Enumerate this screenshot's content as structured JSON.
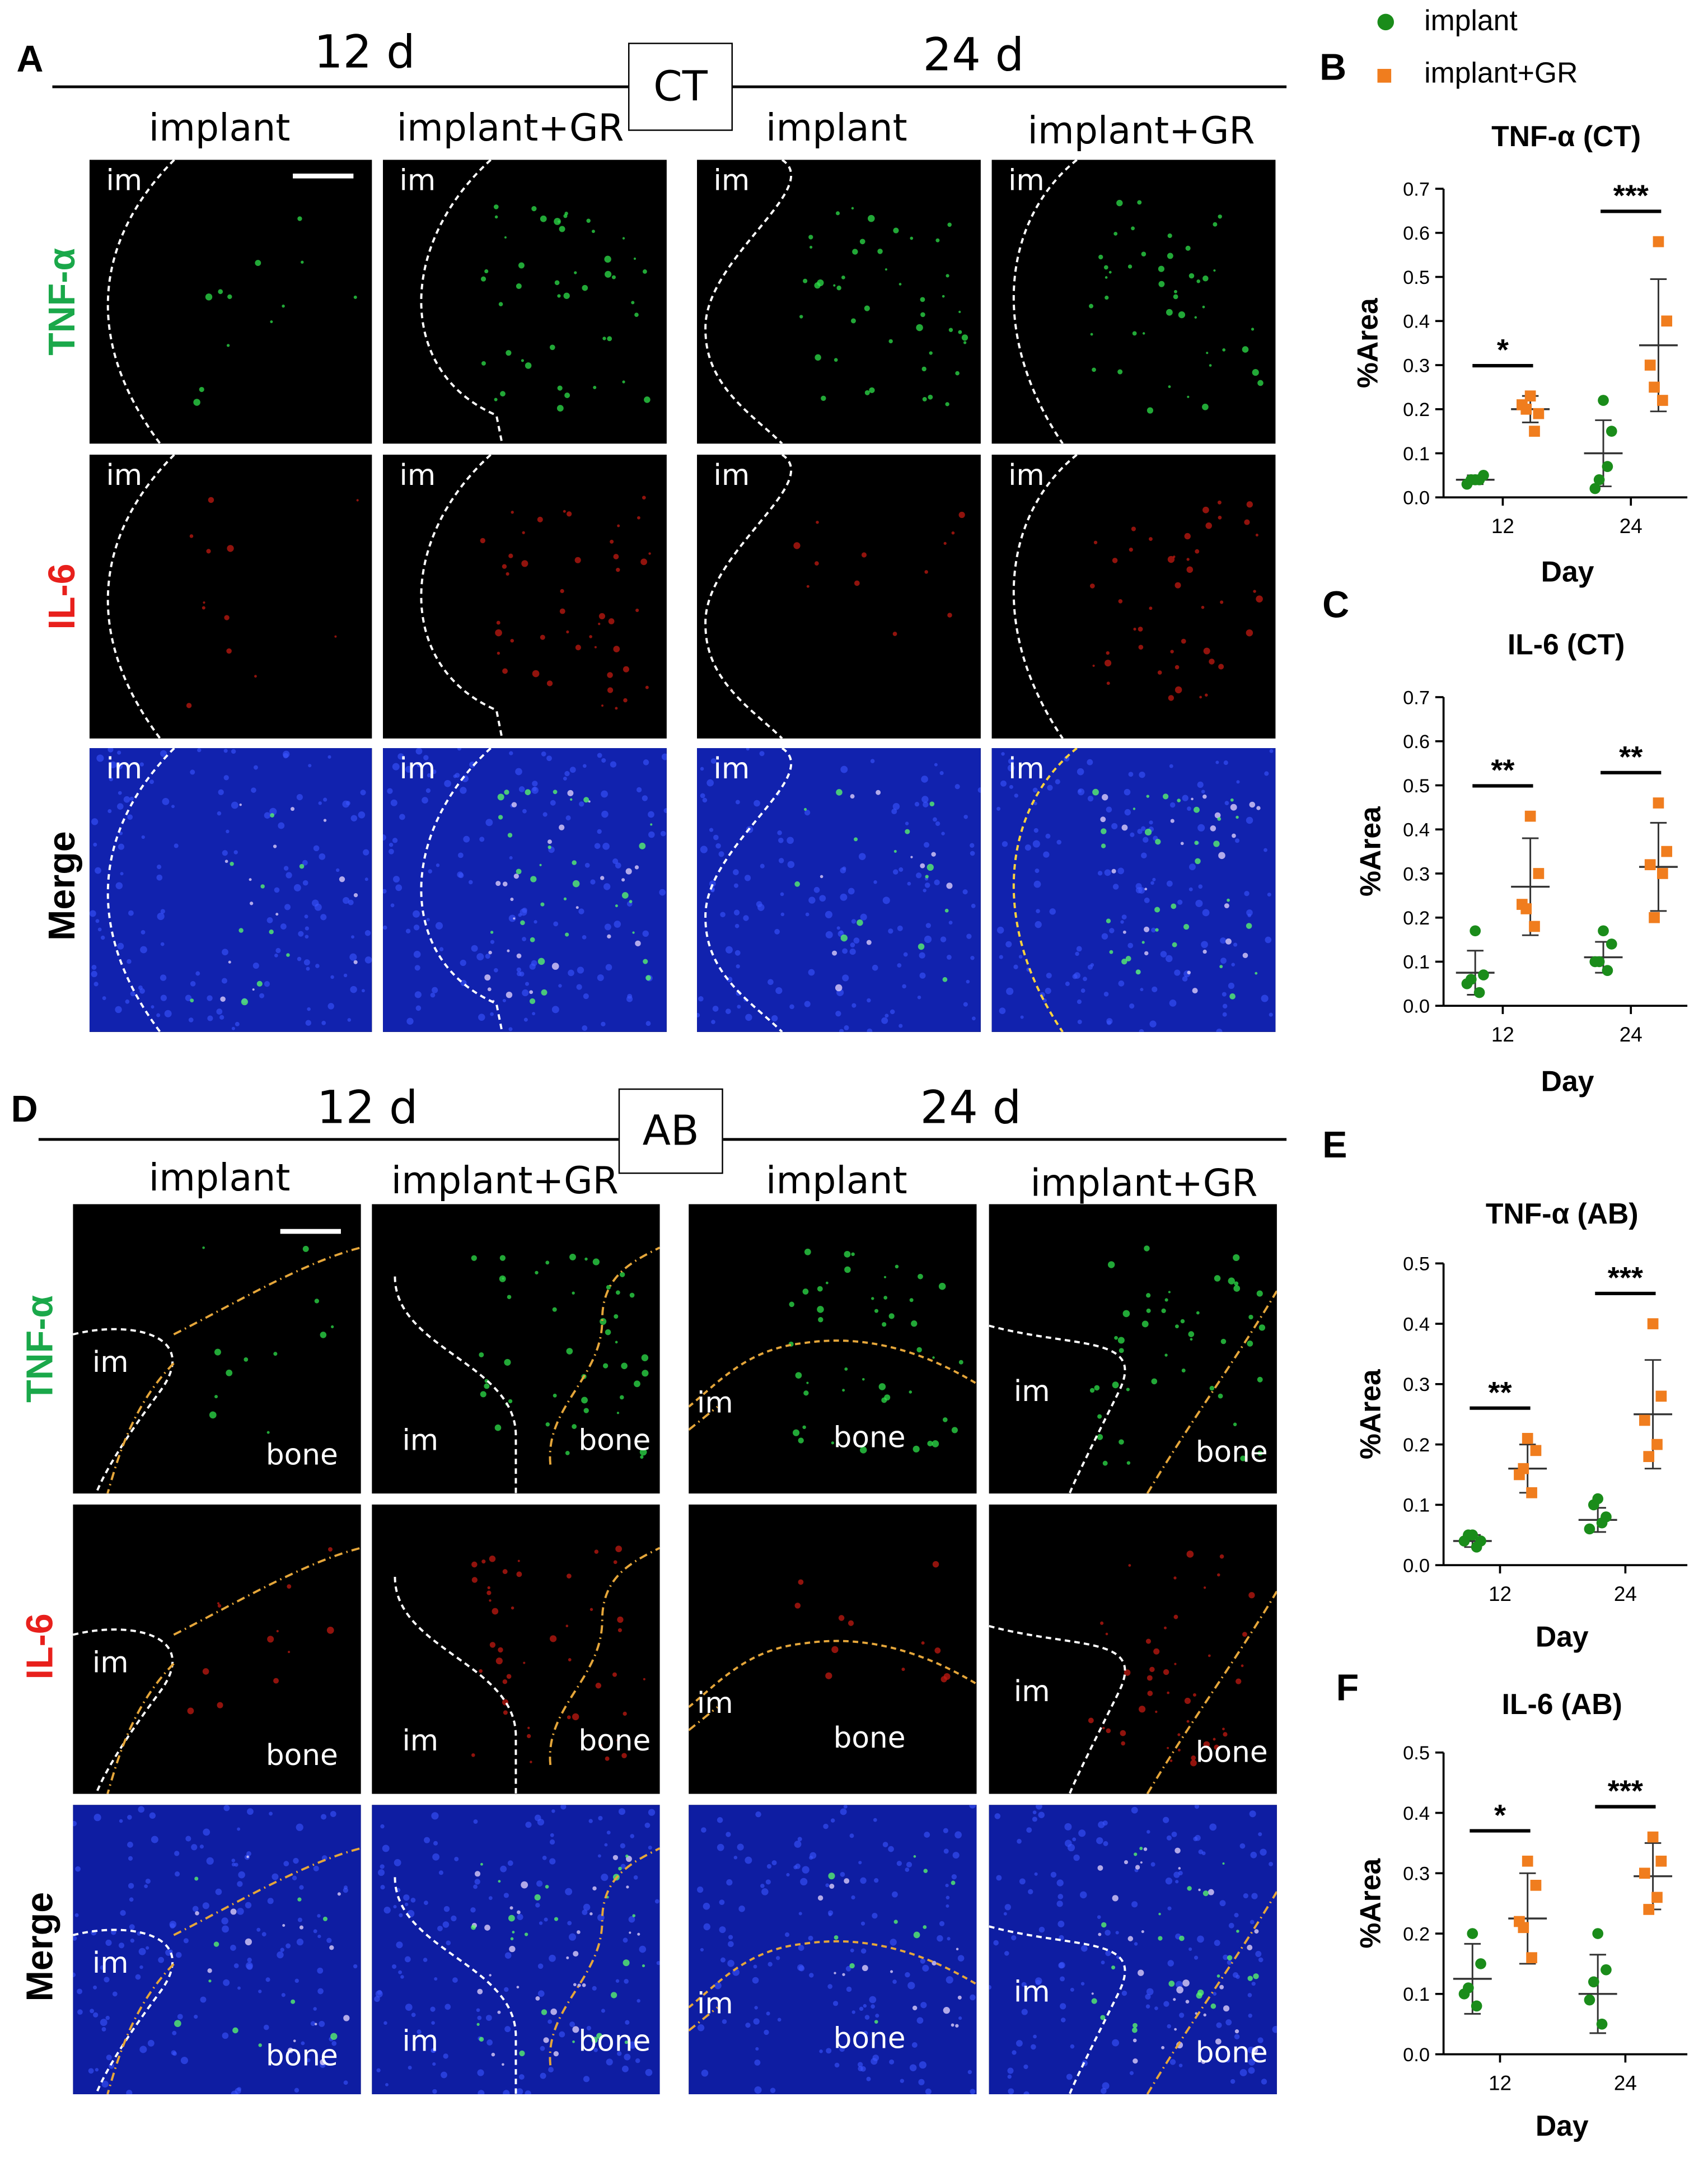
{
  "panel_labels": {
    "A": "A",
    "B": "B",
    "C": "C",
    "D": "D",
    "E": "E",
    "F": "F"
  },
  "section_top": {
    "tag": "CT",
    "day_left": "12 d",
    "day_right": "24 d",
    "columns": [
      "implant",
      "implant+GR",
      "implant",
      "implant+GR"
    ],
    "rows": [
      "TNF-α",
      "IL-6",
      "Merge"
    ],
    "row_colors": [
      "#1aa84a",
      "#e8201c",
      "#000000"
    ],
    "tiles": [
      [
        "im",
        "im",
        "im",
        "im"
      ],
      [
        "im",
        "im",
        "im",
        "im"
      ],
      [
        "im",
        "im",
        "im",
        "im"
      ]
    ]
  },
  "section_bottom": {
    "tag": "AB",
    "day_left": "12 d",
    "day_right": "24 d",
    "columns": [
      "implant",
      "implant+GR",
      "implant",
      "implant+GR"
    ],
    "rows": [
      "TNF-α",
      "IL-6",
      "Merge"
    ],
    "row_colors": [
      "#1aa84a",
      "#e8201c",
      "#000000"
    ],
    "tile_labels": {
      "im": "im",
      "bone": "bone"
    }
  },
  "legend": [
    {
      "label": "implant",
      "color": "#1a8c1a",
      "marker": "circle"
    },
    {
      "label": "implant+GR",
      "color": "#f07d1e",
      "marker": "square"
    }
  ],
  "chart_data": [
    {
      "id": "B",
      "type": "scatter",
      "title": "TNF-α (CT)",
      "xlabel": "Day",
      "ylabel": "%Area",
      "categories": [
        "12",
        "24"
      ],
      "ylim": [
        0,
        0.7
      ],
      "yticks": [
        "0.0",
        "0.1",
        "0.2",
        "0.3",
        "0.4",
        "0.5",
        "0.6",
        "0.7"
      ],
      "series": [
        {
          "name": "implant",
          "values": [
            [
              0.04,
              0.05,
              0.03,
              0.04,
              0.04
            ],
            [
              0.22,
              0.15,
              0.02,
              0.07,
              0.04
            ]
          ],
          "mean": [
            0.04,
            0.1
          ],
          "sd": [
            0.01,
            0.075
          ]
        },
        {
          "name": "implant+GR",
          "values": [
            [
              0.23,
              0.19,
              0.21,
              0.15,
              0.2
            ],
            [
              0.58,
              0.4,
              0.3,
              0.22,
              0.25
            ]
          ],
          "mean": [
            0.2,
            0.345
          ],
          "sd": [
            0.03,
            0.15
          ]
        }
      ],
      "significance": [
        {
          "category": "12",
          "text": "*"
        },
        {
          "category": "24",
          "text": "***"
        }
      ]
    },
    {
      "id": "C",
      "type": "scatter",
      "title": "IL-6 (CT)",
      "xlabel": "Day",
      "ylabel": "%Area",
      "categories": [
        "12",
        "24"
      ],
      "ylim": [
        0,
        0.7
      ],
      "yticks": [
        "0.0",
        "0.1",
        "0.2",
        "0.3",
        "0.4",
        "0.5",
        "0.6",
        "0.7"
      ],
      "series": [
        {
          "name": "implant",
          "values": [
            [
              0.17,
              0.07,
              0.05,
              0.03,
              0.06
            ],
            [
              0.17,
              0.14,
              0.1,
              0.08,
              0.1
            ]
          ],
          "mean": [
            0.075,
            0.11
          ],
          "sd": [
            0.05,
            0.035
          ]
        },
        {
          "name": "implant+GR",
          "values": [
            [
              0.43,
              0.3,
              0.23,
              0.18,
              0.22
            ],
            [
              0.46,
              0.35,
              0.32,
              0.3,
              0.2
            ]
          ],
          "mean": [
            0.27,
            0.315
          ],
          "sd": [
            0.11,
            0.1
          ]
        }
      ],
      "significance": [
        {
          "category": "12",
          "text": "**"
        },
        {
          "category": "24",
          "text": "**"
        }
      ]
    },
    {
      "id": "E",
      "type": "scatter",
      "title": "TNF-α (AB)",
      "xlabel": "Day",
      "ylabel": "%Area",
      "categories": [
        "12",
        "24"
      ],
      "ylim": [
        0,
        0.5
      ],
      "yticks": [
        "0.0",
        "0.1",
        "0.2",
        "0.3",
        "0.4",
        "0.5"
      ],
      "series": [
        {
          "name": "implant",
          "values": [
            [
              0.05,
              0.04,
              0.04,
              0.03,
              0.05
            ],
            [
              0.11,
              0.08,
              0.06,
              0.07,
              0.1
            ]
          ],
          "mean": [
            0.04,
            0.075
          ],
          "sd": [
            0.01,
            0.02
          ]
        },
        {
          "name": "implant+GR",
          "values": [
            [
              0.21,
              0.19,
              0.15,
              0.12,
              0.16
            ],
            [
              0.4,
              0.28,
              0.24,
              0.2,
              0.18
            ]
          ],
          "mean": [
            0.16,
            0.25
          ],
          "sd": [
            0.04,
            0.09
          ]
        }
      ],
      "significance": [
        {
          "category": "12",
          "text": "**"
        },
        {
          "category": "24",
          "text": "***"
        }
      ]
    },
    {
      "id": "F",
      "type": "scatter",
      "title": "IL-6 (AB)",
      "xlabel": "Day",
      "ylabel": "%Area",
      "categories": [
        "12",
        "24"
      ],
      "ylim": [
        0,
        0.5
      ],
      "yticks": [
        "0.0",
        "0.1",
        "0.2",
        "0.3",
        "0.4",
        "0.5"
      ],
      "series": [
        {
          "name": "implant",
          "values": [
            [
              0.2,
              0.15,
              0.1,
              0.08,
              0.11
            ],
            [
              0.2,
              0.14,
              0.09,
              0.05,
              0.12
            ]
          ],
          "mean": [
            0.125,
            0.1
          ],
          "sd": [
            0.058,
            0.065
          ]
        },
        {
          "name": "implant+GR",
          "values": [
            [
              0.32,
              0.28,
              0.22,
              0.16,
              0.21
            ],
            [
              0.36,
              0.32,
              0.3,
              0.26,
              0.24
            ]
          ],
          "mean": [
            0.225,
            0.295
          ],
          "sd": [
            0.075,
            0.055
          ]
        }
      ],
      "significance": [
        {
          "category": "12",
          "text": "*"
        },
        {
          "category": "24",
          "text": "***"
        }
      ]
    }
  ]
}
